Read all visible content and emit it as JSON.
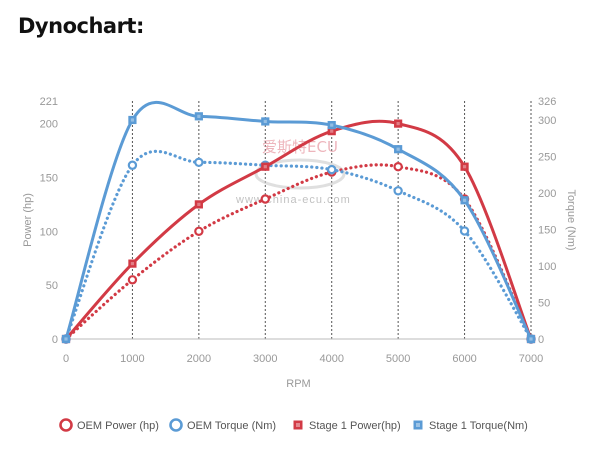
{
  "heading": "Dynochart:",
  "watermark": {
    "brand": "爱斯特ECU",
    "url": "www.china-ecu.com"
  },
  "chart_data": {
    "type": "line",
    "xlabel": "RPM",
    "ylabel_left": "Power (hp)",
    "ylabel_right": "Torque (Nm)",
    "x": [
      0,
      1000,
      2000,
      3000,
      4000,
      5000,
      6000,
      7000
    ],
    "xlim": [
      0,
      7000
    ],
    "ylim_left": [
      0,
      221
    ],
    "ylim_right": [
      0,
      326
    ],
    "left_ticks": [
      0,
      50,
      100,
      150,
      200,
      221
    ],
    "right_ticks": [
      0,
      50,
      100,
      150,
      200,
      250,
      300,
      326
    ],
    "vertical_grid": true,
    "legend_position": "bottom",
    "series": [
      {
        "name": "OEM Power (hp)",
        "axis": "left",
        "style": "dotted",
        "color": "#d23a45",
        "marker": "circle",
        "values": [
          0,
          55,
          100,
          130,
          155,
          160,
          130,
          0
        ]
      },
      {
        "name": "OEM Torque (Nm)",
        "axis": "right",
        "style": "dotted",
        "color": "#5b9bd5",
        "marker": "circle",
        "values": [
          0,
          238,
          242,
          238,
          232,
          203,
          148,
          0
        ]
      },
      {
        "name": "Stage 1 Power(hp)",
        "axis": "left",
        "style": "solid",
        "color": "#d23a45",
        "marker": "square",
        "values": [
          0,
          70,
          125,
          160,
          193,
          200,
          160,
          0
        ]
      },
      {
        "name": "Stage 1 Torque(Nm)",
        "axis": "right",
        "style": "solid",
        "color": "#5b9bd5",
        "marker": "square",
        "values": [
          0,
          300,
          305,
          298,
          293,
          260,
          190,
          0
        ]
      }
    ]
  }
}
